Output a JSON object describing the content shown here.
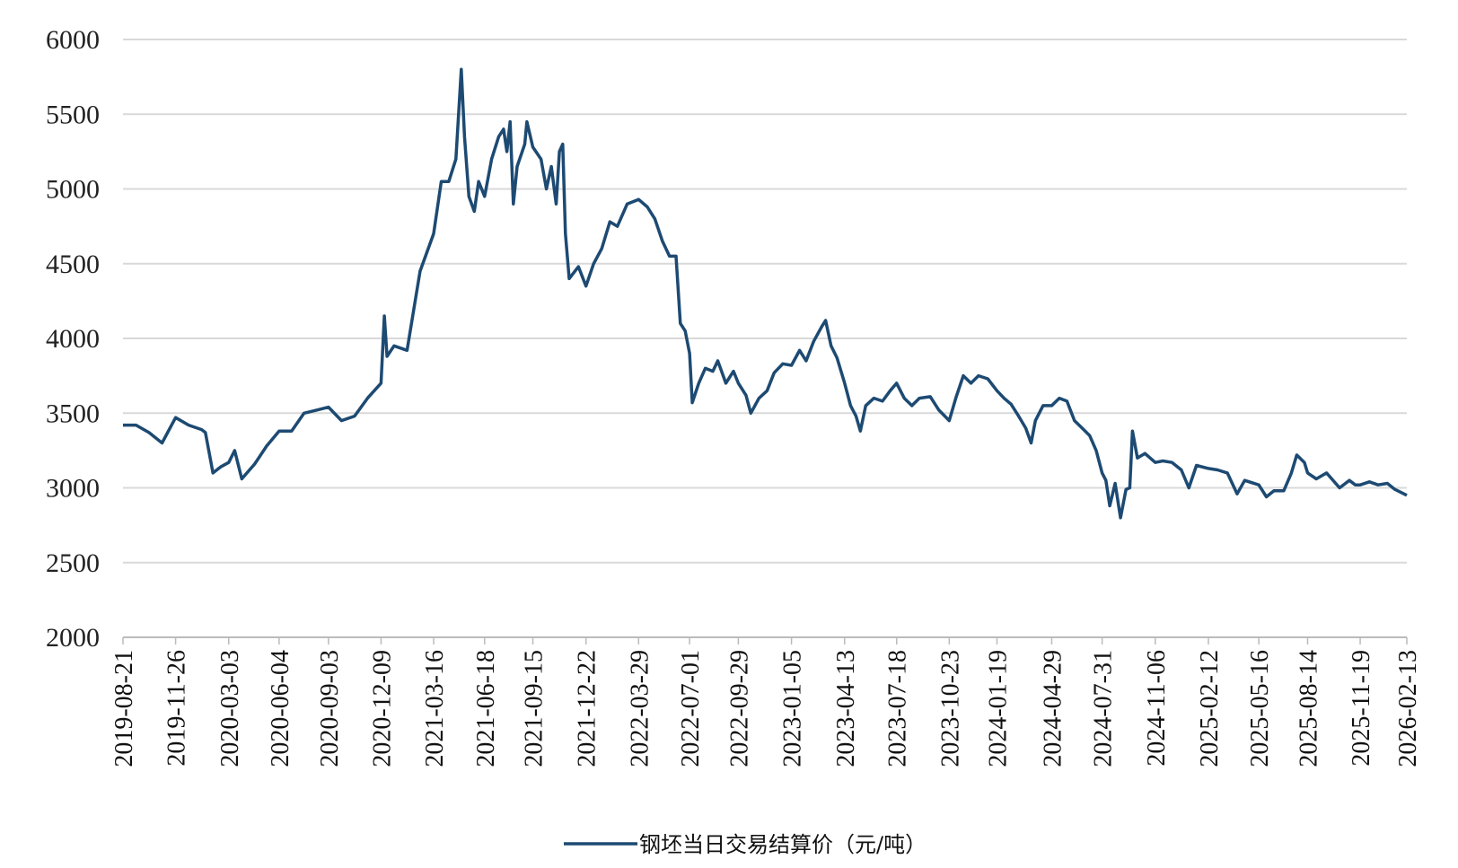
{
  "chart_data": {
    "type": "line",
    "x": [
      "2019-08-21",
      "2019-09-14",
      "2019-10-08",
      "2019-11-01",
      "2019-11-26",
      "2019-12-20",
      "2020-01-13",
      "2020-01-20",
      "2020-02-03",
      "2020-02-17",
      "2020-03-03",
      "2020-03-14",
      "2020-03-27",
      "2020-04-20",
      "2020-05-12",
      "2020-06-04",
      "2020-06-27",
      "2020-07-20",
      "2020-08-12",
      "2020-09-03",
      "2020-09-27",
      "2020-10-21",
      "2020-11-14",
      "2020-12-09",
      "2020-12-15",
      "2020-12-20",
      "2021-01-02",
      "2021-01-26",
      "2021-02-19",
      "2021-03-16",
      "2021-03-30",
      "2021-04-13",
      "2021-04-26",
      "2021-05-06",
      "2021-05-12",
      "2021-05-20",
      "2021-05-30",
      "2021-06-07",
      "2021-06-18",
      "2021-07-01",
      "2021-07-14",
      "2021-07-23",
      "2021-07-29",
      "2021-08-04",
      "2021-08-10",
      "2021-08-17",
      "2021-08-31",
      "2021-09-04",
      "2021-09-15",
      "2021-09-30",
      "2021-10-10",
      "2021-10-19",
      "2021-10-28",
      "2021-11-03",
      "2021-11-09",
      "2021-11-14",
      "2021-11-21",
      "2021-12-08",
      "2021-12-22",
      "2022-01-05",
      "2022-01-20",
      "2022-02-04",
      "2022-02-18",
      "2022-03-08",
      "2022-03-29",
      "2022-04-14",
      "2022-04-28",
      "2022-05-12",
      "2022-05-25",
      "2022-06-06",
      "2022-06-14",
      "2022-06-23",
      "2022-07-01",
      "2022-07-06",
      "2022-07-18",
      "2022-07-30",
      "2022-08-13",
      "2022-08-22",
      "2022-09-06",
      "2022-09-20",
      "2022-09-29",
      "2022-10-13",
      "2022-10-22",
      "2022-11-06",
      "2022-11-21",
      "2022-12-04",
      "2022-12-20",
      "2023-01-05",
      "2023-01-20",
      "2023-02-01",
      "2023-02-15",
      "2023-03-02",
      "2023-03-09",
      "2023-03-19",
      "2023-03-30",
      "2023-04-13",
      "2023-04-24",
      "2023-05-04",
      "2023-05-12",
      "2023-05-22",
      "2023-06-06",
      "2023-06-22",
      "2023-07-06",
      "2023-07-18",
      "2023-08-01",
      "2023-08-15",
      "2023-08-29",
      "2023-09-18",
      "2023-10-04",
      "2023-10-23",
      "2023-11-04",
      "2023-11-18",
      "2023-12-02",
      "2023-12-16",
      "2024-01-02",
      "2024-01-19",
      "2024-02-01",
      "2024-02-14",
      "2024-02-28",
      "2024-03-12",
      "2024-03-22",
      "2024-03-30",
      "2024-04-13",
      "2024-04-29",
      "2024-05-13",
      "2024-05-27",
      "2024-06-10",
      "2024-06-24",
      "2024-07-08",
      "2024-07-20",
      "2024-07-31",
      "2024-08-07",
      "2024-08-14",
      "2024-08-24",
      "2024-09-03",
      "2024-09-13",
      "2024-09-20",
      "2024-09-25",
      "2024-10-04",
      "2024-10-18",
      "2024-11-06",
      "2024-11-20",
      "2024-12-07",
      "2024-12-24",
      "2025-01-07",
      "2025-01-21",
      "2025-02-12",
      "2025-03-01",
      "2025-03-19",
      "2025-04-06",
      "2025-04-20",
      "2025-05-16",
      "2025-05-30",
      "2025-06-13",
      "2025-07-01",
      "2025-07-15",
      "2025-07-25",
      "2025-08-08",
      "2025-08-14",
      "2025-08-30",
      "2025-09-18",
      "2025-10-12",
      "2025-10-30",
      "2025-11-10",
      "2025-11-19",
      "2025-12-06",
      "2025-12-22",
      "2026-01-08",
      "2026-01-22",
      "2026-02-13"
    ],
    "series": [
      {
        "name": "钢坯当日交易结算价（元/吨）",
        "color": "#1d4a72",
        "values": [
          3420,
          3420,
          3370,
          3300,
          3470,
          3420,
          3390,
          3370,
          3100,
          3140,
          3170,
          3250,
          3060,
          3160,
          3280,
          3380,
          3380,
          3500,
          3520,
          3540,
          3450,
          3480,
          3600,
          3700,
          4150,
          3880,
          3950,
          3920,
          4450,
          4700,
          5050,
          5050,
          5200,
          5800,
          5350,
          4950,
          4850,
          5050,
          4950,
          5200,
          5350,
          5400,
          5250,
          5450,
          4900,
          5150,
          5300,
          5450,
          5280,
          5200,
          5000,
          5150,
          4900,
          5250,
          5300,
          4700,
          4400,
          4480,
          4350,
          4500,
          4600,
          4780,
          4750,
          4900,
          4930,
          4880,
          4800,
          4650,
          4550,
          4550,
          4100,
          4050,
          3900,
          3570,
          3700,
          3800,
          3780,
          3850,
          3700,
          3780,
          3700,
          3620,
          3500,
          3600,
          3650,
          3770,
          3830,
          3820,
          3920,
          3850,
          3980,
          4080,
          4120,
          3950,
          3870,
          3700,
          3550,
          3480,
          3380,
          3550,
          3600,
          3580,
          3650,
          3700,
          3600,
          3550,
          3600,
          3610,
          3520,
          3450,
          3600,
          3750,
          3700,
          3750,
          3730,
          3650,
          3600,
          3560,
          3480,
          3400,
          3300,
          3450,
          3550,
          3550,
          3600,
          3580,
          3450,
          3400,
          3350,
          3250,
          3100,
          3050,
          2880,
          3030,
          2800,
          2990,
          3000,
          3380,
          3200,
          3230,
          3170,
          3180,
          3170,
          3120,
          3000,
          3150,
          3130,
          3120,
          3100,
          2960,
          3050,
          3020,
          2940,
          2980,
          2980,
          3100,
          3220,
          3170,
          3100,
          3060,
          3100,
          3000,
          3050,
          3020,
          3020,
          3040,
          3020,
          3030,
          2990,
          2950
        ]
      }
    ],
    "xlim": [
      "2019-08-21",
      "2026-02-13"
    ],
    "xticks": [
      "2019-08-21",
      "2019-11-26",
      "2020-03-03",
      "2020-06-04",
      "2020-09-03",
      "2020-12-09",
      "2021-03-16",
      "2021-06-18",
      "2021-09-15",
      "2021-12-22",
      "2022-03-29",
      "2022-07-01",
      "2022-09-29",
      "2023-01-05",
      "2023-04-13",
      "2023-07-18",
      "2023-10-23",
      "2024-01-19",
      "2024-04-29",
      "2024-07-31",
      "2024-11-06",
      "2025-02-12",
      "2025-05-16",
      "2025-08-14",
      "2025-11-19",
      "2026-02-13"
    ],
    "ylim": [
      2000,
      6000
    ],
    "yticks": [
      2000,
      2500,
      3000,
      3500,
      4000,
      4500,
      5000,
      5500,
      6000
    ],
    "grid": true,
    "legend": "bottom"
  }
}
